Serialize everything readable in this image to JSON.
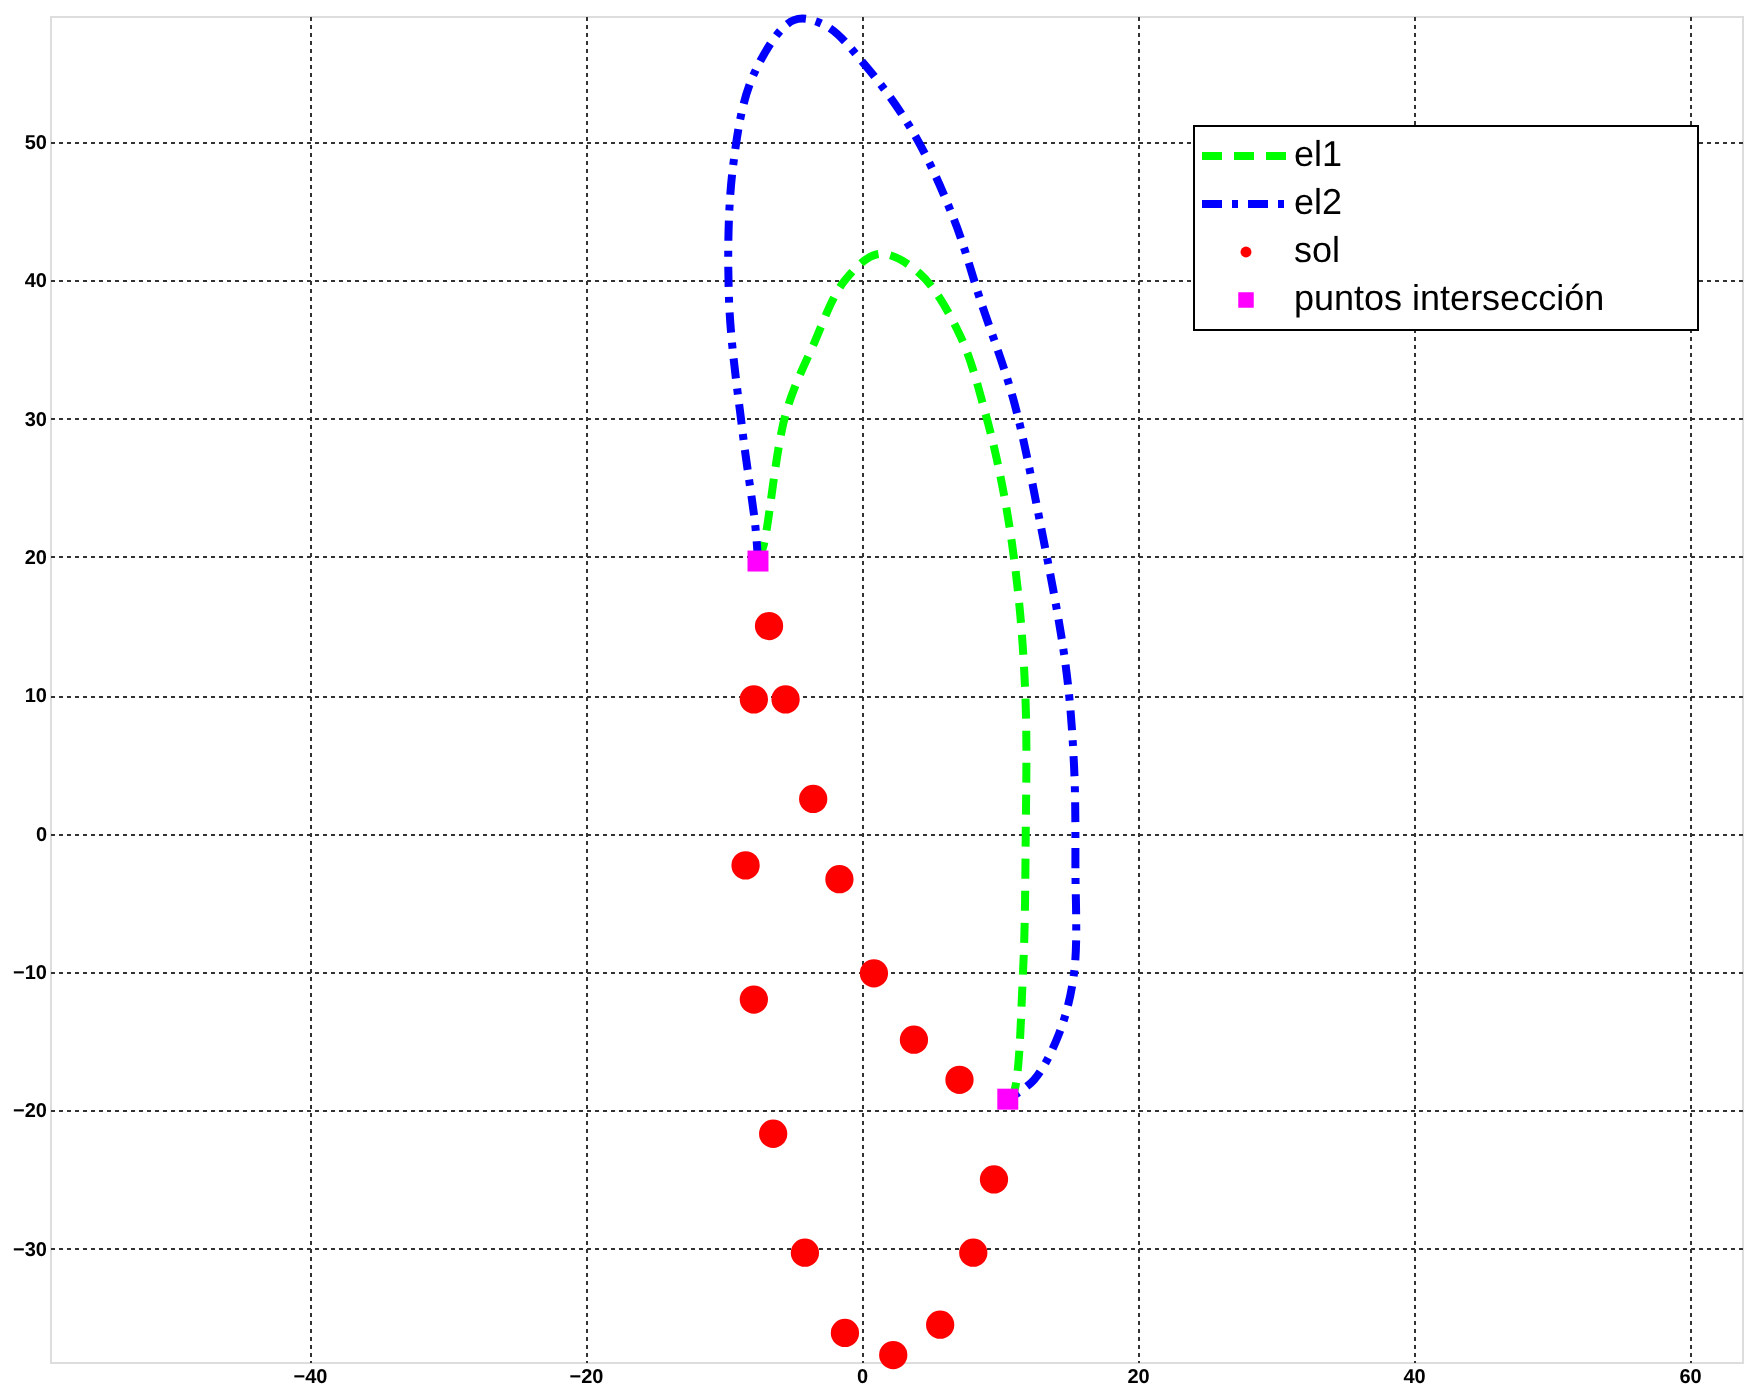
{
  "chart_data": {
    "type": "line",
    "xlim": [
      -58.8,
      63.8
    ],
    "ylim": [
      -38.2,
      59.1
    ],
    "xticks": [
      -40,
      -20,
      0,
      20,
      40,
      60
    ],
    "yticks": [
      -30,
      -20,
      -10,
      0,
      10,
      20,
      30,
      40,
      50
    ],
    "grid": true,
    "legend": "top right",
    "series": [
      {
        "name": "el1",
        "color": "#00ff00",
        "line_style": "dashed",
        "marker": "none",
        "x": [
          -7.5,
          -7.1,
          -5.5,
          -3.5,
          -1.2,
          1.3,
          4.2,
          7.1,
          9.0,
          10.4,
          11.4,
          11.9,
          11.9,
          11.7,
          11.0,
          10.6
        ],
        "values": [
          19.7,
          20.8,
          30.3,
          35.3,
          40.0,
          41.9,
          40.5,
          36.1,
          30.3,
          24.1,
          16.9,
          9.2,
          0,
          -10.1,
          -18.8,
          -19.2
        ]
      },
      {
        "name": "el2",
        "color": "#0000ff",
        "line_style": "dashdot",
        "marker": "none",
        "x": [
          -7.5,
          -7.7,
          -8.6,
          -9.6,
          -9.3,
          -7.8,
          -4.9,
          -2.6,
          0.3,
          3.8,
          6.7,
          8.6,
          11.0,
          12.9,
          14.8,
          15.4,
          15.5,
          15.4,
          14.3,
          12.5,
          10.6
        ],
        "values": [
          19.7,
          22.3,
          28.9,
          38.6,
          48.3,
          54.9,
          58.8,
          58.4,
          55.5,
          50.6,
          44.4,
          38.6,
          31.4,
          22.7,
          12.1,
          4.9,
          -2.3,
          -10.1,
          -14.5,
          -17.8,
          -19.2
        ]
      },
      {
        "name": "sol",
        "color": "#ff0000",
        "type": "scatter",
        "marker": "circle",
        "x": [
          -7.8,
          -8.4,
          -7.8,
          -6.4,
          -4.1,
          -1.2,
          2.3,
          5.7,
          8.1,
          9.6,
          7.1,
          3.8,
          0.9,
          -1.6,
          -3.5,
          -5.5,
          -6.7
        ],
        "values": [
          9.7,
          -2.3,
          -12.0,
          -21.7,
          -30.3,
          -36.1,
          -37.7,
          -35.5,
          -30.3,
          -25.0,
          -17.8,
          -14.9,
          -10.1,
          -3.3,
          2.5,
          9.7,
          15.0
        ]
      },
      {
        "name": "puntos intersección",
        "color": "#ff00ff",
        "type": "scatter",
        "marker": "square",
        "x": [
          -7.5,
          10.6
        ],
        "values": [
          19.7,
          -19.2
        ]
      }
    ]
  }
}
